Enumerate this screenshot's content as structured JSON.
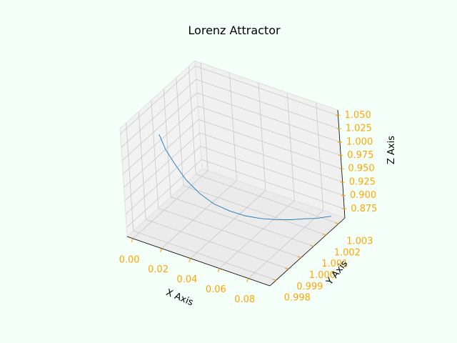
{
  "chart_data": {
    "type": "line",
    "title": "Lorenz Attractor",
    "xlabel": "X Axis",
    "ylabel": "Y Axis",
    "zlabel": "Z Axis",
    "x_ticks": [
      "0.00",
      "0.02",
      "0.04",
      "0.06",
      "0.08"
    ],
    "y_ticks": [
      "0.998",
      "0.999",
      "1.000",
      "1.001",
      "1.002",
      "1.003"
    ],
    "z_ticks": [
      "0.875",
      "0.900",
      "0.925",
      "0.950",
      "0.975",
      "1.000",
      "1.025",
      "1.050"
    ],
    "xlim": [
      -0.004,
      0.095
    ],
    "ylim": [
      0.9975,
      1.0035
    ],
    "zlim": [
      0.858,
      1.06
    ],
    "grid": true,
    "series": [
      {
        "x": [
          0.0,
          0.004,
          0.009,
          0.015,
          0.022,
          0.03,
          0.038,
          0.046,
          0.054,
          0.062,
          0.07,
          0.077,
          0.083,
          0.088,
          0.091
        ],
        "y": [
          1.0,
          1.0,
          1.0001,
          1.0002,
          1.0004,
          1.0006,
          1.0009,
          1.0012,
          1.0015,
          1.0018,
          1.0021,
          1.0024,
          1.0026,
          1.0028,
          1.0029
        ],
        "z": [
          1.0,
          0.975,
          0.95,
          0.925,
          0.902,
          0.885,
          0.873,
          0.865,
          0.861,
          0.86,
          0.861,
          0.863,
          0.865,
          0.868,
          0.87
        ]
      }
    ]
  },
  "colors": {
    "background": "#f5fffa",
    "line": "#1f77b4",
    "tick_labels": "#ffa500",
    "pane": "#f2f2f2",
    "grid": "#c8c8c8"
  }
}
